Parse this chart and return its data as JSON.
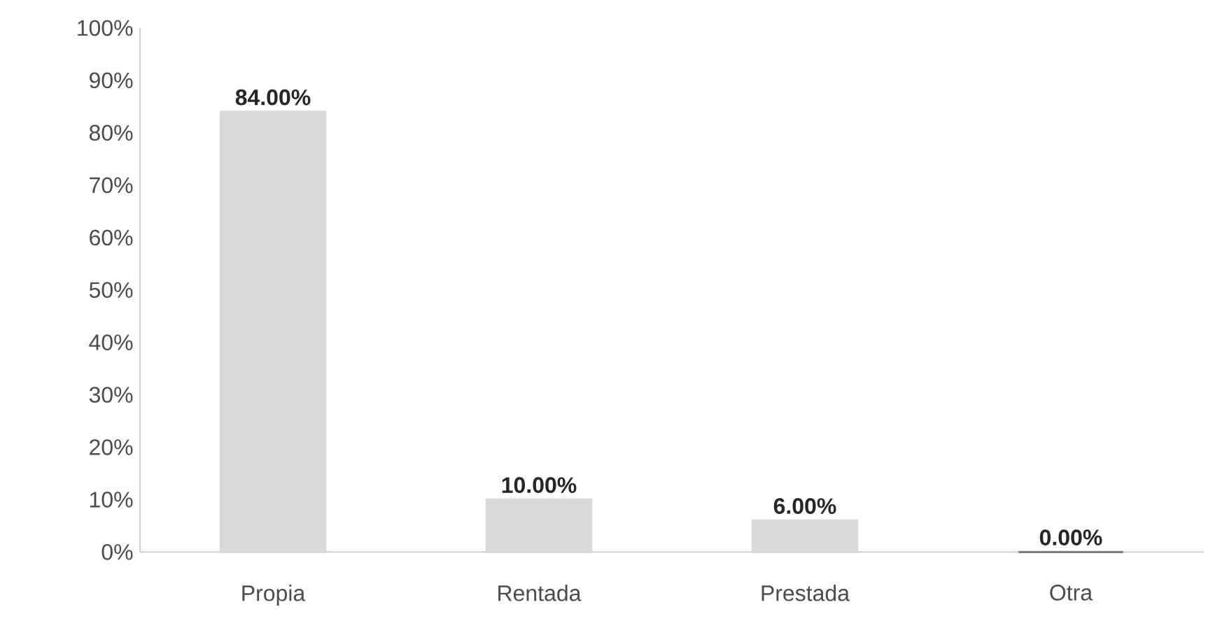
{
  "chart_data": {
    "type": "bar",
    "categories": [
      "Propia",
      "Rentada",
      "Prestada",
      "Otra"
    ],
    "values": [
      84,
      10,
      6,
      0
    ],
    "value_labels": [
      "84.00%",
      "10.00%",
      "6.00%",
      "0.00%"
    ],
    "colors": [
      "#d9d9d9",
      "#d9d9d9",
      "#d9d9d9",
      "#808080"
    ],
    "ylim": [
      0,
      100
    ],
    "yticks": [
      {
        "value": 0,
        "label": "0%"
      },
      {
        "value": 10,
        "label": "10%"
      },
      {
        "value": 20,
        "label": "20%"
      },
      {
        "value": 30,
        "label": "30%"
      },
      {
        "value": 40,
        "label": "40%"
      },
      {
        "value": 50,
        "label": "50%"
      },
      {
        "value": 60,
        "label": "60%"
      },
      {
        "value": 70,
        "label": "70%"
      },
      {
        "value": 80,
        "label": "80%"
      },
      {
        "value": 90,
        "label": "90%"
      },
      {
        "value": 100,
        "label": "100%"
      }
    ],
    "grid": false
  }
}
